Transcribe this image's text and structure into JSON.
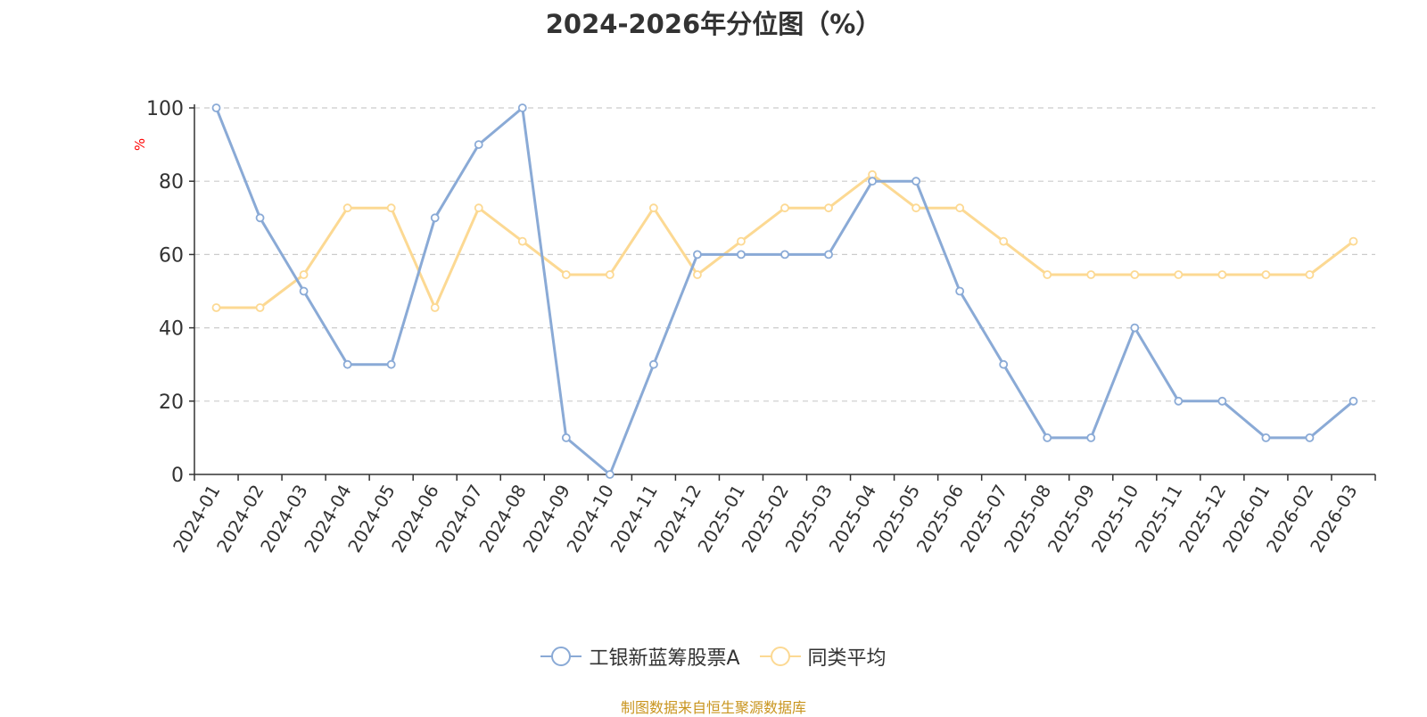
{
  "title": "2024-2026年分位图（%）",
  "source_text": "制图数据来自恒生聚源数据库",
  "colors": {
    "series1": "#8aaad6",
    "series2": "#fcd993",
    "grid": "#cccccc",
    "axis": "#333333",
    "ylabel": "#ff0000",
    "source": "#c9951f"
  },
  "chart_data": {
    "type": "line",
    "ylabel": "%",
    "ylim": [
      0,
      100
    ],
    "yticks": [
      0,
      20,
      40,
      60,
      80,
      100
    ],
    "grid": true,
    "legend_position": "bottom-center",
    "categories": [
      "2024-01",
      "2024-02",
      "2024-03",
      "2024-04",
      "2024-05",
      "2024-06",
      "2024-07",
      "2024-08",
      "2024-09",
      "2024-10",
      "2024-11",
      "2024-12",
      "2025-01",
      "2025-02",
      "2025-03",
      "2025-04",
      "2025-05",
      "2025-06",
      "2025-07",
      "2025-08",
      "2025-09",
      "2025-10",
      "2025-11",
      "2025-12",
      "2026-01",
      "2026-02",
      "2026-03"
    ],
    "series": [
      {
        "name": "工银新蓝筹股票A",
        "values": [
          100,
          70,
          50,
          30,
          30,
          70,
          90,
          100,
          10,
          0,
          30,
          60,
          60,
          60,
          60,
          80,
          80,
          50,
          30,
          10,
          10,
          40,
          20,
          20,
          10,
          10,
          20
        ]
      },
      {
        "name": "同类平均",
        "values": [
          45.5,
          45.5,
          54.5,
          72.7,
          72.7,
          45.5,
          72.7,
          63.6,
          54.5,
          54.5,
          72.7,
          54.5,
          63.6,
          72.7,
          72.7,
          81.8,
          72.7,
          72.7,
          63.6,
          54.5,
          54.5,
          54.5,
          54.5,
          54.5,
          54.5,
          54.5,
          63.6
        ]
      }
    ]
  }
}
